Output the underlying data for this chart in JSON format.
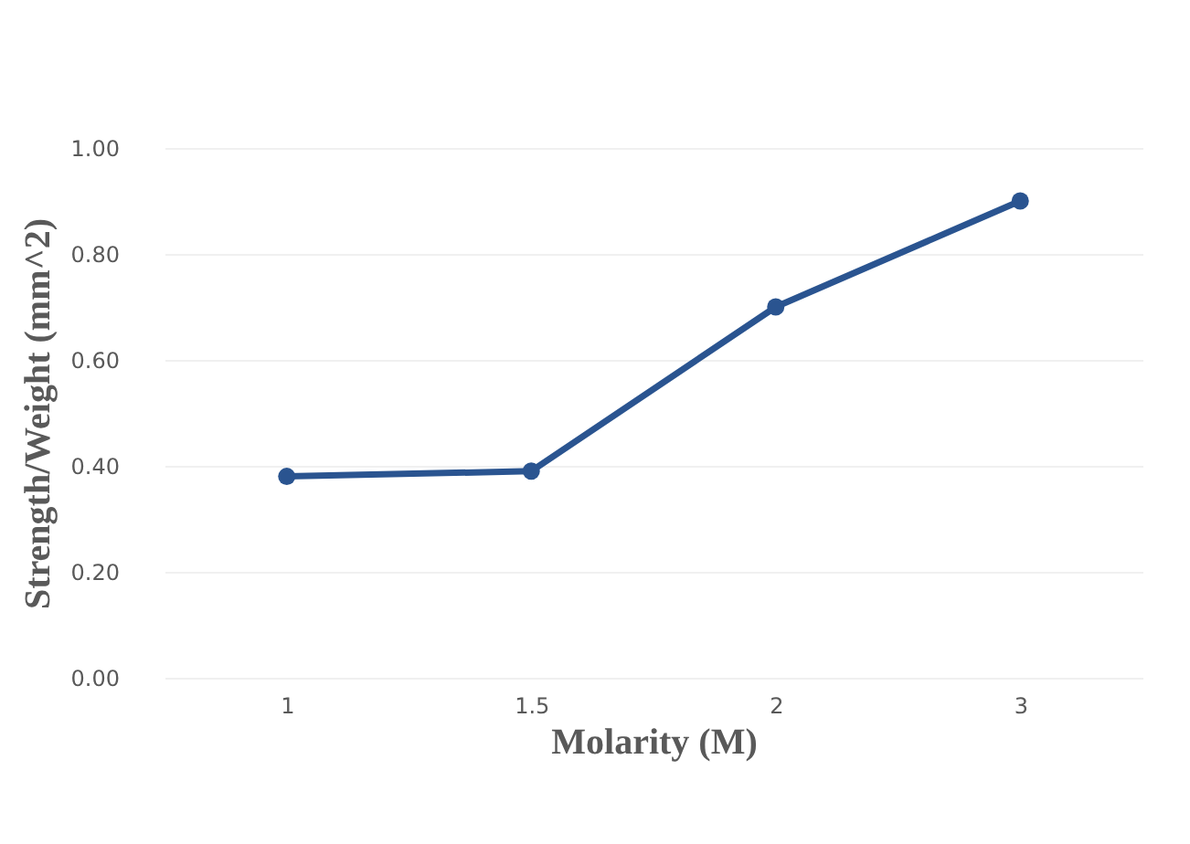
{
  "chart_data": {
    "type": "line",
    "xlabel": "Molarity (M)",
    "ylabel": "Strength/Weight (mm^2)",
    "categories": [
      "1",
      "1.5",
      "2",
      "3"
    ],
    "series": [
      {
        "color": "#2a5490",
        "values": [
          0.38,
          0.39,
          0.7,
          0.9
        ]
      }
    ],
    "ylim": [
      0,
      1
    ],
    "yticks": [
      {
        "value": 0,
        "label": "0.00"
      },
      {
        "value": 0.2,
        "label": "0.20"
      },
      {
        "value": 0.4,
        "label": "0.40"
      },
      {
        "value": 0.6,
        "label": "0.60"
      },
      {
        "value": 0.8,
        "label": "0.80"
      },
      {
        "value": 1,
        "label": "1.00"
      }
    ],
    "grid": "y",
    "marker": "circle",
    "line_style": "solid"
  }
}
